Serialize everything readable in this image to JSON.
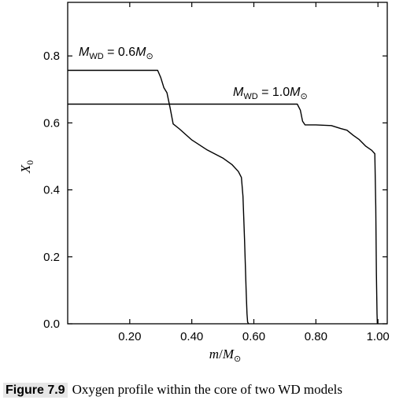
{
  "chart_data": {
    "type": "line",
    "xlabel": "m/M⊙",
    "ylabel": "X0",
    "xlim": [
      0.0,
      1.03
    ],
    "ylim": [
      0.0,
      0.96
    ],
    "x_ticks": [
      0.2,
      0.4,
      0.6,
      0.8,
      1.0
    ],
    "x_tick_labels": [
      "0.20",
      "0.40",
      "0.60",
      "0.80",
      "1.00"
    ],
    "y_ticks": [
      0.0,
      0.2,
      0.4,
      0.6,
      0.8
    ],
    "y_tick_labels": [
      "0.0",
      "0.2",
      "0.4",
      "0.6",
      "0.8"
    ],
    "grid": false,
    "series": [
      {
        "name": "M_WD = 0.6 M⊙",
        "x": [
          0.0,
          0.29,
          0.3,
          0.31,
          0.32,
          0.33,
          0.34,
          0.36,
          0.4,
          0.45,
          0.5,
          0.53,
          0.55,
          0.56,
          0.565,
          0.57,
          0.575,
          0.578,
          0.58,
          0.583
        ],
        "y": [
          0.757,
          0.757,
          0.735,
          0.705,
          0.69,
          0.645,
          0.597,
          0.582,
          0.549,
          0.519,
          0.495,
          0.475,
          0.455,
          0.437,
          0.38,
          0.25,
          0.1,
          0.03,
          0.005,
          0.0
        ]
      },
      {
        "name": "M_WD = 1.0 M⊙",
        "x": [
          0.0,
          0.74,
          0.75,
          0.757,
          0.765,
          0.8,
          0.85,
          0.88,
          0.9,
          0.92,
          0.94,
          0.96,
          0.98,
          0.99,
          0.993,
          0.995,
          0.997,
          0.998
        ],
        "y": [
          0.656,
          0.656,
          0.638,
          0.605,
          0.594,
          0.594,
          0.592,
          0.583,
          0.578,
          0.563,
          0.55,
          0.531,
          0.518,
          0.508,
          0.35,
          0.15,
          0.03,
          0.0
        ]
      }
    ],
    "annotations": [
      {
        "base": "M",
        "sub": "WD",
        "eq": " = 0.6",
        "unit_base": "M",
        "unit_sub": "⊙"
      },
      {
        "base": "M",
        "sub": "WD",
        "eq": " = 1.0",
        "unit_base": "M",
        "unit_sub": "⊙"
      }
    ]
  },
  "caption": {
    "label": "Figure 7.9",
    "text": "Oxygen profile within the core of two WD models"
  }
}
